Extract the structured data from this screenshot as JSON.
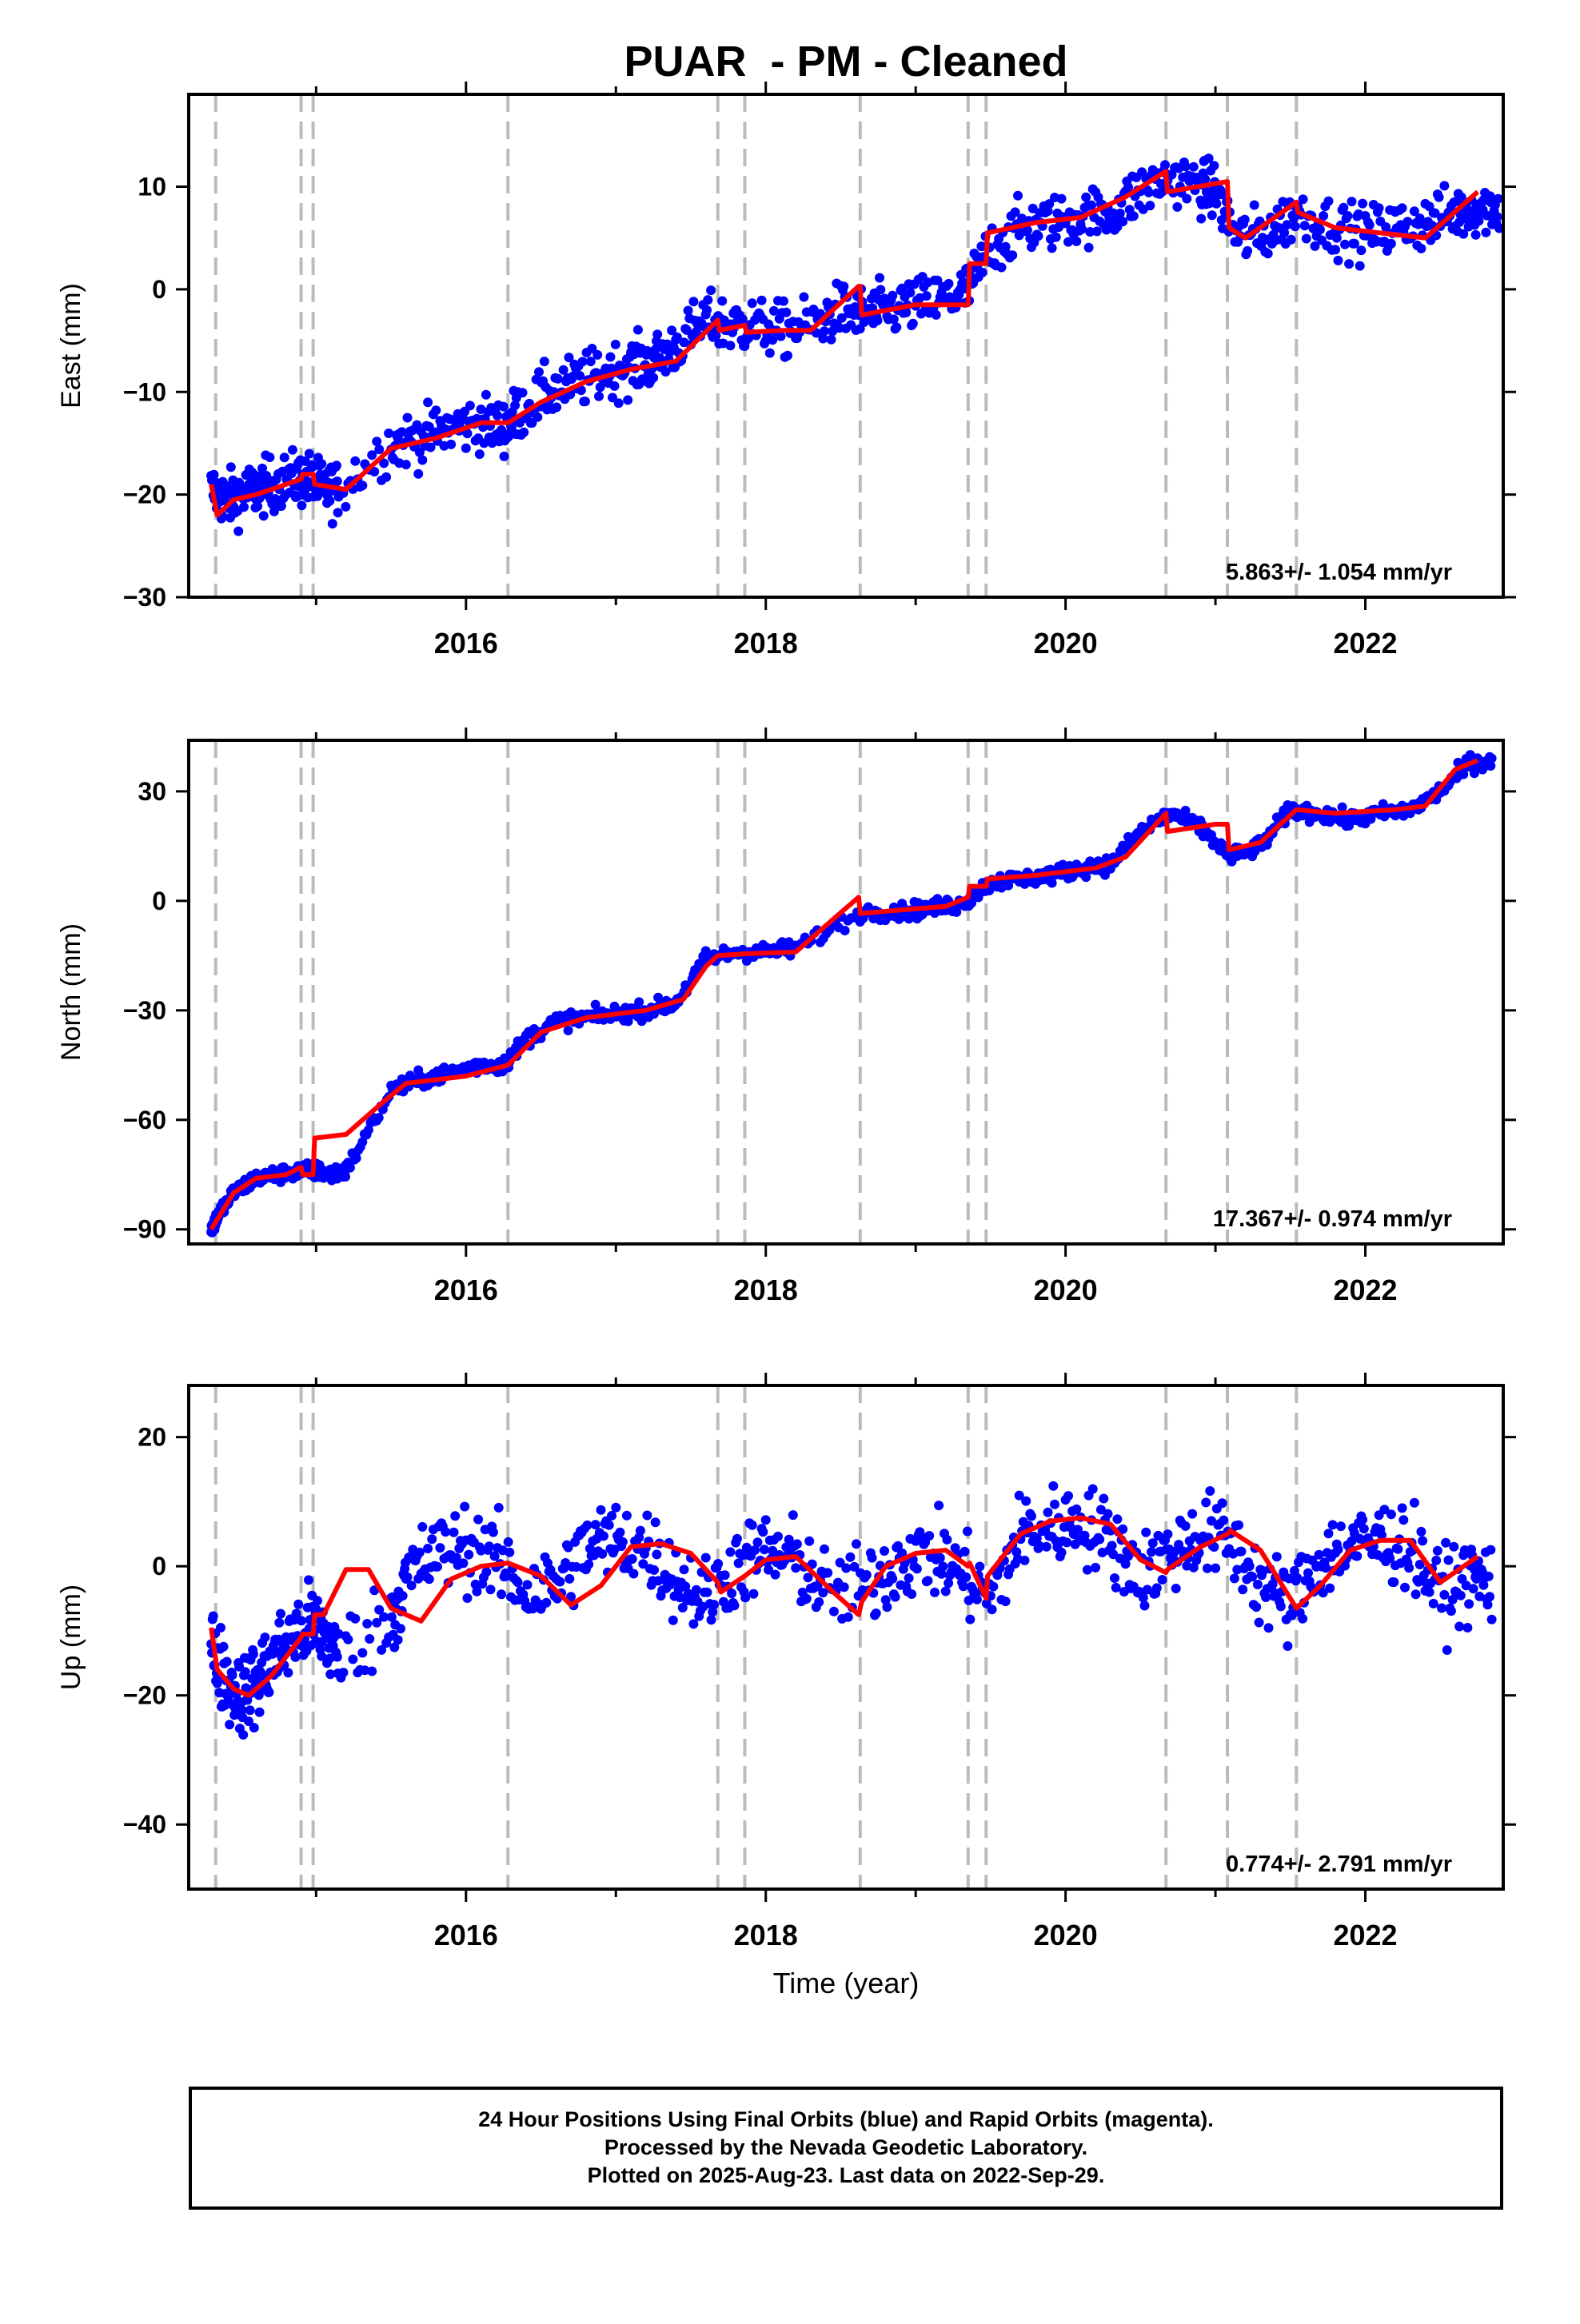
{
  "title": "PUAR  - PM - Cleaned",
  "xlabel": "Time (year)",
  "footer": {
    "line1": "24 Hour Positions Using Final Orbits (blue) and Rapid Orbits (magenta).",
    "line2": "Processed by the Nevada Geodetic Laboratory.",
    "line3": "Plotted on 2025-Aug-23. Last data on 2022-Sep-29."
  },
  "colors": {
    "data_points": "#0000ff",
    "model_line": "#ff0000",
    "event_lines": "#bbbbbb",
    "frame": "#000000"
  },
  "chart_data": [
    {
      "type": "scatter",
      "component": "east",
      "ylabel": "East (mm)",
      "xlim": [
        2014.15,
        2022.92
      ],
      "ylim": [
        -30,
        19
      ],
      "yticks": [
        -30,
        -20,
        -10,
        0,
        10
      ],
      "xticks": [
        2016,
        2018,
        2020,
        2022
      ],
      "rate_label": "5.863+/- 1.054 mm/yr",
      "event_lines": [
        2014.33,
        2014.9,
        2014.98,
        2016.28,
        2017.68,
        2017.86,
        2018.63,
        2019.35,
        2019.47,
        2020.67,
        2021.08,
        2021.54
      ],
      "grid": false,
      "series": [
        {
          "role": "daily positions",
          "x": [
            2014.3,
            2014.4,
            2014.5,
            2014.6,
            2014.7,
            2014.85,
            2014.95,
            2015.05,
            2015.15,
            2015.5,
            2015.7,
            2015.9,
            2016.1,
            2016.25,
            2016.35,
            2016.55,
            2016.75,
            2016.95,
            2017.1,
            2017.25,
            2017.4,
            2017.6,
            2017.75,
            2017.9,
            2018.1,
            2018.3,
            2018.5,
            2018.65,
            2018.8,
            2019.0,
            2019.2,
            2019.35,
            2019.5,
            2019.7,
            2019.9,
            2020.1,
            2020.3,
            2020.5,
            2020.7,
            2020.9,
            2021.0,
            2021.15,
            2021.35,
            2021.55,
            2021.8,
            2022.0,
            2022.2,
            2022.4,
            2022.6,
            2022.75
          ],
          "y": [
            -19.5,
            -20.5,
            -20.0,
            -19.5,
            -19.0,
            -18.5,
            -18.5,
            -19.5,
            -19.5,
            -15.0,
            -14.5,
            -13.5,
            -13.0,
            -13.5,
            -12.0,
            -10.0,
            -9.0,
            -8.0,
            -7.5,
            -7.0,
            -5.5,
            -3.0,
            -3.5,
            -3.5,
            -4.0,
            -3.5,
            -2.0,
            -2.5,
            -2.0,
            -1.5,
            -1.0,
            0.0,
            4.0,
            6.0,
            6.5,
            7.0,
            7.5,
            9.5,
            11.0,
            10.0,
            9.5,
            5.0,
            5.5,
            7.5,
            6.0,
            5.5,
            6.0,
            6.5,
            7.5,
            8.0
          ]
        },
        {
          "role": "model fit",
          "x": [
            2014.3,
            2014.34,
            2014.45,
            2014.6,
            2014.8,
            2014.9,
            2014.91,
            2014.98,
            2014.99,
            2015.2,
            2015.5,
            2015.8,
            2016.1,
            2016.28,
            2016.5,
            2016.8,
            2017.1,
            2017.4,
            2017.68,
            2017.69,
            2017.86,
            2017.87,
            2018.1,
            2018.3,
            2018.62,
            2018.63,
            2018.64,
            2019.0,
            2019.35,
            2019.36,
            2019.47,
            2019.48,
            2019.8,
            2020.1,
            2020.4,
            2020.67,
            2020.68,
            2021.08,
            2021.09,
            2021.2,
            2021.54,
            2021.55,
            2021.8,
            2022.1,
            2022.4,
            2022.75
          ],
          "y": [
            -19.0,
            -22.0,
            -20.5,
            -20.0,
            -19.0,
            -18.5,
            -18.0,
            -18.0,
            -19.0,
            -19.5,
            -15.5,
            -14.5,
            -13.0,
            -13.0,
            -11.0,
            -9.0,
            -7.8,
            -7.0,
            -3.0,
            -4.0,
            -3.5,
            -4.2,
            -4.0,
            -4.0,
            0.3,
            0.3,
            -2.5,
            -1.5,
            -1.5,
            2.5,
            2.5,
            5.5,
            6.5,
            7.0,
            9.0,
            11.5,
            9.5,
            10.5,
            6.0,
            5.0,
            8.5,
            7.5,
            6.0,
            5.5,
            5.0,
            9.5
          ]
        }
      ]
    },
    {
      "type": "scatter",
      "component": "north",
      "ylabel": "North (mm)",
      "xlim": [
        2014.15,
        2022.92
      ],
      "ylim": [
        -94,
        44
      ],
      "yticks": [
        -90,
        -60,
        -30,
        0,
        30
      ],
      "xticks": [
        2016,
        2018,
        2020,
        2022
      ],
      "rate_label": "17.367+/- 0.974 mm/yr",
      "event_lines": [
        2014.33,
        2014.9,
        2014.98,
        2016.28,
        2017.68,
        2017.86,
        2018.63,
        2019.35,
        2019.47,
        2020.67,
        2021.08,
        2021.54
      ],
      "grid": false,
      "series": [
        {
          "role": "daily positions",
          "x": [
            2014.3,
            2014.35,
            2014.45,
            2014.6,
            2014.75,
            2014.9,
            2015.0,
            2015.1,
            2015.2,
            2015.5,
            2015.7,
            2015.9,
            2016.1,
            2016.25,
            2016.4,
            2016.6,
            2016.8,
            2017.0,
            2017.2,
            2017.4,
            2017.6,
            2017.8,
            2018.0,
            2018.2,
            2018.65,
            2018.9,
            2019.1,
            2019.3,
            2019.5,
            2019.7,
            2019.9,
            2020.1,
            2020.3,
            2020.5,
            2020.7,
            2020.9,
            2021.1,
            2021.3,
            2021.5,
            2021.7,
            2021.9,
            2022.1,
            2022.3,
            2022.5,
            2022.7
          ],
          "y": [
            -90.0,
            -86.0,
            -80.0,
            -76.0,
            -75.0,
            -74.0,
            -74.0,
            -75.0,
            -74.0,
            -52.0,
            -49.0,
            -47.0,
            -45.0,
            -45.0,
            -38.0,
            -33.0,
            -32.0,
            -31.0,
            -30.0,
            -28.0,
            -16.0,
            -14.0,
            -14.0,
            -13.0,
            -3.0,
            -3.0,
            -2.0,
            -1.0,
            5.0,
            6.0,
            7.0,
            9.0,
            10.0,
            19.0,
            24.0,
            20.0,
            12.0,
            15.0,
            25.0,
            24.0,
            22.0,
            24.0,
            25.0,
            30.0,
            38.0
          ]
        },
        {
          "role": "model fit",
          "x": [
            2014.3,
            2014.45,
            2014.6,
            2014.8,
            2014.9,
            2014.91,
            2014.98,
            2014.99,
            2015.2,
            2015.45,
            2015.6,
            2016.0,
            2016.28,
            2016.5,
            2016.8,
            2017.2,
            2017.45,
            2017.6,
            2017.68,
            2017.86,
            2018.2,
            2018.45,
            2018.62,
            2018.63,
            2018.9,
            2019.2,
            2019.35,
            2019.36,
            2019.47,
            2019.48,
            2019.8,
            2020.2,
            2020.4,
            2020.67,
            2020.68,
            2021.0,
            2021.08,
            2021.09,
            2021.3,
            2021.54,
            2021.8,
            2022.2,
            2022.4,
            2022.6,
            2022.75
          ],
          "y": [
            -90.0,
            -80.0,
            -76.0,
            -75.0,
            -73.0,
            -75.0,
            -75.0,
            -65.0,
            -64.0,
            -55.0,
            -50.0,
            -48.0,
            -45.0,
            -36.0,
            -32.0,
            -30.0,
            -27.0,
            -18.0,
            -15.0,
            -14.5,
            -14.0,
            -5.0,
            1.0,
            -3.5,
            -2.5,
            -1.5,
            1.0,
            4.0,
            4.0,
            6.0,
            7.0,
            9.0,
            12.0,
            24.0,
            19.0,
            21.0,
            21.0,
            14.0,
            16.0,
            25.0,
            24.0,
            25.0,
            26.0,
            36.0,
            38.5
          ]
        }
      ]
    },
    {
      "type": "scatter",
      "component": "up",
      "ylabel": "Up (mm)",
      "xlim": [
        2014.15,
        2022.92
      ],
      "ylim": [
        -50,
        28
      ],
      "yticks": [
        -40,
        -20,
        0,
        20
      ],
      "xticks": [
        2016,
        2018,
        2020,
        2022
      ],
      "rate_label": "0.774+/- 2.791 mm/yr",
      "event_lines": [
        2014.33,
        2014.9,
        2014.98,
        2016.28,
        2017.68,
        2017.86,
        2018.63,
        2019.35,
        2019.47,
        2020.67,
        2021.08,
        2021.54
      ],
      "grid": false,
      "series": [
        {
          "role": "daily positions",
          "x": [
            2014.3,
            2014.4,
            2014.5,
            2014.6,
            2014.7,
            2014.8,
            2014.95,
            2015.05,
            2015.15,
            2015.5,
            2015.6,
            2015.8,
            2016.0,
            2016.2,
            2016.4,
            2016.6,
            2016.8,
            2017.0,
            2017.2,
            2017.4,
            2017.6,
            2017.8,
            2018.0,
            2018.2,
            2018.4,
            2018.7,
            2018.9,
            2019.1,
            2019.3,
            2019.5,
            2019.7,
            2019.9,
            2020.1,
            2020.3,
            2020.5,
            2020.7,
            2020.9,
            2021.1,
            2021.3,
            2021.5,
            2021.7,
            2021.9,
            2022.1,
            2022.3,
            2022.5,
            2022.7
          ],
          "y": [
            -12.0,
            -18.0,
            -20.0,
            -18.0,
            -15.0,
            -12.0,
            -9.0,
            -10.0,
            -14.0,
            -8.0,
            -2.0,
            2.0,
            3.0,
            1.0,
            -4.0,
            -3.0,
            3.0,
            4.0,
            3.0,
            -2.0,
            -5.0,
            0.0,
            2.0,
            1.0,
            -4.0,
            -3.0,
            1.0,
            2.0,
            -1.0,
            -5.0,
            5.0,
            6.0,
            7.0,
            4.0,
            -1.0,
            2.0,
            5.0,
            4.0,
            -3.0,
            -6.0,
            1.0,
            3.0,
            4.0,
            3.0,
            -4.0,
            -2.0
          ]
        },
        {
          "role": "model fit",
          "x": [
            2014.3,
            2014.34,
            2014.45,
            2014.55,
            2014.7,
            2014.9,
            2014.91,
            2014.98,
            2014.99,
            2015.05,
            2015.2,
            2015.35,
            2015.5,
            2015.7,
            2015.9,
            2016.1,
            2016.28,
            2016.5,
            2016.7,
            2016.9,
            2017.1,
            2017.3,
            2017.5,
            2017.68,
            2017.7,
            2017.86,
            2018.0,
            2018.2,
            2018.45,
            2018.62,
            2018.64,
            2018.8,
            2019.0,
            2019.2,
            2019.35,
            2019.36,
            2019.47,
            2019.48,
            2019.7,
            2019.9,
            2020.1,
            2020.3,
            2020.5,
            2020.67,
            2020.68,
            2020.9,
            2021.08,
            2021.1,
            2021.3,
            2021.54,
            2021.7,
            2021.9,
            2022.1,
            2022.3,
            2022.5,
            2022.75
          ],
          "y": [
            -9.5,
            -16.0,
            -19.0,
            -20.0,
            -17.0,
            -11.0,
            -10.5,
            -10.5,
            -7.5,
            -7.5,
            -0.5,
            -0.5,
            -6.5,
            -8.5,
            -2.0,
            0.0,
            0.5,
            -1.5,
            -6.0,
            -3.0,
            3.0,
            3.5,
            2.0,
            -2.5,
            -4.0,
            -1.5,
            1.0,
            1.5,
            -4.0,
            -7.5,
            -5.5,
            0.0,
            2.0,
            2.5,
            0.0,
            0.5,
            -5.0,
            -1.5,
            5.0,
            7.0,
            7.5,
            6.5,
            1.0,
            -1.0,
            -0.5,
            3.0,
            5.0,
            5.5,
            2.5,
            -6.5,
            -3.0,
            2.5,
            4.0,
            4.0,
            -2.5,
            1.5
          ]
        }
      ]
    }
  ]
}
